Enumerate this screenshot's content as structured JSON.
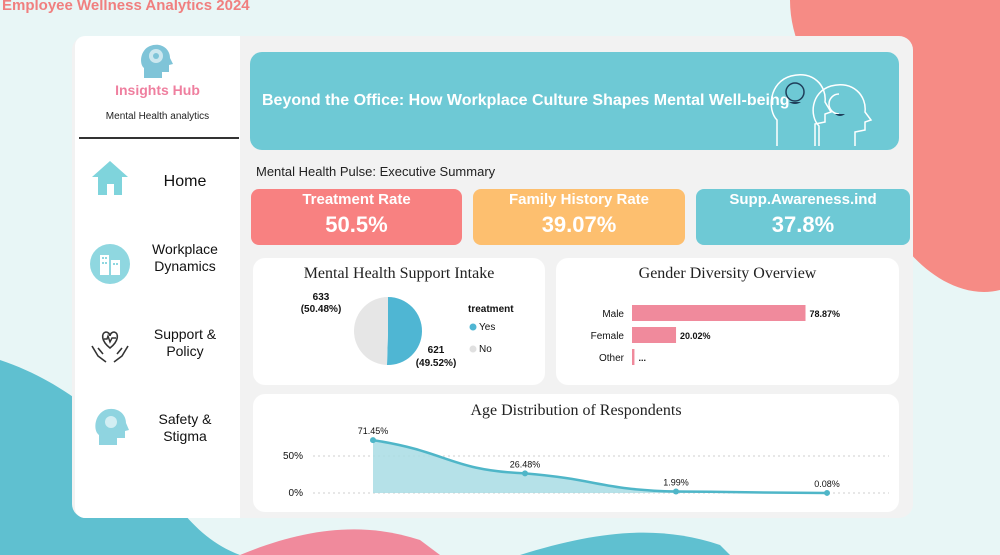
{
  "page_title": "Employee Wellness Analytics 2024",
  "brand": {
    "name": "Insights Hub",
    "subtitle": "Mental Health analytics"
  },
  "nav": [
    {
      "label": "Home",
      "icon": "home-icon"
    },
    {
      "label": "Workplace Dynamics",
      "icon": "office-building-icon"
    },
    {
      "label": "Support & Policy",
      "icon": "heart-hands-icon"
    },
    {
      "label": "Safety & Stigma",
      "icon": "head-profile-icon"
    }
  ],
  "banner": {
    "title": "Beyond the Office: How Workplace Culture Shapes Mental Well-being"
  },
  "section_title": "Mental Health Pulse: Executive Summary",
  "kpis": [
    {
      "label": "Treatment Rate",
      "value": "50.5%",
      "color": "#f88181"
    },
    {
      "label": "Family History Rate",
      "value": "39.07%",
      "color": "#fdbf6f"
    },
    {
      "label": "Supp.Awareness.ind",
      "value": "37.8%",
      "color": "#6ec9d5"
    }
  ],
  "chart_data": [
    {
      "type": "pie",
      "title": "Mental Health Support Intake",
      "legend_title": "treatment",
      "legend_position": "right",
      "slices": [
        {
          "name": "Yes",
          "value": 633,
          "label": "633",
          "pct_label": "(50.48%)",
          "color": "#4fb6d3"
        },
        {
          "name": "No",
          "value": 621,
          "label": "621",
          "pct_label": "(49.52%)",
          "color": "#e6e6e6"
        }
      ]
    },
    {
      "type": "bar",
      "orientation": "horizontal",
      "title": "Gender Diversity Overview",
      "categories": [
        "Male",
        "Female",
        "Other"
      ],
      "values": [
        78.87,
        20.02,
        1.11
      ],
      "value_labels": [
        "78.87%",
        "20.02%",
        "..."
      ],
      "color": "#f08a9c",
      "xlim": [
        0,
        100
      ]
    },
    {
      "type": "area",
      "title": "Age Distribution of Respondents",
      "x": [
        1,
        2,
        3,
        4
      ],
      "values": [
        71.45,
        26.48,
        1.99,
        0.08
      ],
      "value_labels": [
        "71.45%",
        "26.48%",
        "1.99%",
        "0.08%"
      ],
      "y_ticks": [
        "50%",
        "0%"
      ],
      "ylim": [
        0,
        75
      ],
      "color": "#4fb6c8",
      "grid": true
    }
  ]
}
